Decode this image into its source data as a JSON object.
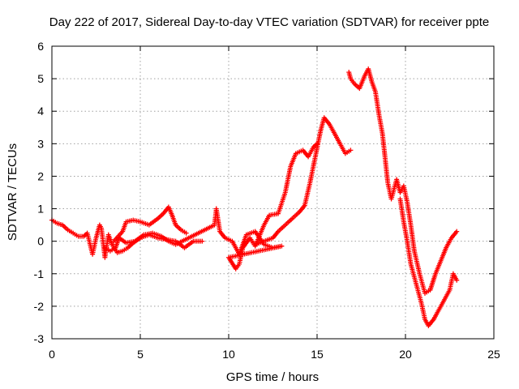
{
  "chart_data": {
    "type": "scatter",
    "title": "Day 222 of 2017, Sidereal Day-to-day VTEC variation (SDTVAR) for receiver ppte",
    "xlabel": "GPS time / hours",
    "ylabel": "SDTVAR / TECUs",
    "xlim": [
      0,
      25
    ],
    "ylim": [
      -3,
      6
    ],
    "xticks": [
      "0",
      "5",
      "10",
      "15",
      "20",
      "25"
    ],
    "yticks": [
      "-3",
      "-2",
      "-1",
      "0",
      "1",
      "2",
      "3",
      "4",
      "5",
      "6"
    ],
    "grid": true,
    "marker": "+",
    "series": [
      {
        "name": "SDTVAR",
        "color": "#ff0000",
        "points": [
          [
            0.0,
            0.65
          ],
          [
            0.3,
            0.55
          ],
          [
            0.6,
            0.5
          ],
          [
            0.9,
            0.35
          ],
          [
            1.2,
            0.25
          ],
          [
            1.5,
            0.15
          ],
          [
            1.8,
            0.15
          ],
          [
            2.0,
            0.25
          ],
          [
            2.3,
            -0.4
          ],
          [
            2.5,
            0.1
          ],
          [
            2.7,
            0.5
          ],
          [
            2.8,
            0.4
          ],
          [
            3.0,
            -0.5
          ],
          [
            3.2,
            0.2
          ],
          [
            3.4,
            -0.1
          ],
          [
            3.7,
            -0.35
          ],
          [
            4.0,
            -0.3
          ],
          [
            4.3,
            -0.2
          ],
          [
            4.6,
            -0.05
          ],
          [
            5.0,
            0.1
          ],
          [
            5.5,
            0.2
          ],
          [
            6.0,
            0.1
          ],
          [
            6.5,
            0.05
          ],
          [
            7.0,
            0.0
          ],
          [
            7.5,
            -0.2
          ],
          [
            8.0,
            0.0
          ],
          [
            8.5,
            0.0
          ],
          [
            3.5,
            0.0
          ],
          [
            4.0,
            0.3
          ],
          [
            4.2,
            0.6
          ],
          [
            4.6,
            0.65
          ],
          [
            5.0,
            0.6
          ],
          [
            5.5,
            0.5
          ],
          [
            6.0,
            0.7
          ],
          [
            6.3,
            0.85
          ],
          [
            6.6,
            1.05
          ],
          [
            6.8,
            0.8
          ],
          [
            7.0,
            0.5
          ],
          [
            7.3,
            0.35
          ],
          [
            7.6,
            0.25
          ],
          [
            3.0,
            -0.2
          ],
          [
            3.3,
            -0.3
          ],
          [
            3.6,
            -0.2
          ],
          [
            3.8,
            0.1
          ],
          [
            4.2,
            -0.05
          ],
          [
            4.7,
            0.0
          ],
          [
            5.2,
            0.2
          ],
          [
            5.7,
            0.25
          ],
          [
            6.2,
            0.15
          ],
          [
            6.6,
            0.0
          ],
          [
            7.0,
            -0.1
          ],
          [
            9.2,
            0.5
          ],
          [
            9.3,
            1.0
          ],
          [
            9.5,
            0.3
          ],
          [
            9.8,
            0.1
          ],
          [
            10.2,
            0.0
          ],
          [
            10.6,
            -0.4
          ],
          [
            11.0,
            0.2
          ],
          [
            11.5,
            0.3
          ],
          [
            12.0,
            -0.1
          ],
          [
            12.5,
            -0.2
          ],
          [
            13.0,
            -0.15
          ],
          [
            10.0,
            -0.5
          ],
          [
            10.4,
            -0.85
          ],
          [
            10.6,
            -0.7
          ],
          [
            10.8,
            -0.2
          ],
          [
            11.2,
            0.1
          ],
          [
            11.5,
            -0.15
          ],
          [
            12.0,
            0.5
          ],
          [
            12.3,
            0.8
          ],
          [
            12.8,
            0.85
          ],
          [
            13.2,
            1.5
          ],
          [
            13.5,
            2.3
          ],
          [
            13.8,
            2.7
          ],
          [
            14.2,
            2.8
          ],
          [
            14.5,
            2.6
          ],
          [
            14.8,
            2.9
          ],
          [
            15.0,
            3.0
          ],
          [
            11.5,
            -0.1
          ],
          [
            12.0,
            0.0
          ],
          [
            12.5,
            0.1
          ],
          [
            12.8,
            0.3
          ],
          [
            13.2,
            0.5
          ],
          [
            13.6,
            0.7
          ],
          [
            14.0,
            0.9
          ],
          [
            14.3,
            1.1
          ],
          [
            14.6,
            1.8
          ],
          [
            14.9,
            2.6
          ],
          [
            15.2,
            3.4
          ],
          [
            15.4,
            3.8
          ],
          [
            15.7,
            3.6
          ],
          [
            16.0,
            3.3
          ],
          [
            16.3,
            3.0
          ],
          [
            16.6,
            2.7
          ],
          [
            16.9,
            2.8
          ],
          [
            16.8,
            5.2
          ],
          [
            16.9,
            5.0
          ],
          [
            17.1,
            4.85
          ],
          [
            17.4,
            4.7
          ],
          [
            17.7,
            5.1
          ],
          [
            17.9,
            5.3
          ],
          [
            18.1,
            4.9
          ],
          [
            18.3,
            4.6
          ],
          [
            18.5,
            3.9
          ],
          [
            18.7,
            3.3
          ],
          [
            19.0,
            1.8
          ],
          [
            19.2,
            1.3
          ],
          [
            19.5,
            1.9
          ],
          [
            19.7,
            1.5
          ],
          [
            19.9,
            1.7
          ],
          [
            20.1,
            1.2
          ],
          [
            20.3,
            0.5
          ],
          [
            20.5,
            -0.3
          ],
          [
            20.8,
            -1.0
          ],
          [
            21.1,
            -1.6
          ],
          [
            21.4,
            -1.5
          ],
          [
            21.7,
            -1.0
          ],
          [
            22.0,
            -0.6
          ],
          [
            22.3,
            -0.2
          ],
          [
            22.6,
            0.1
          ],
          [
            22.9,
            0.3
          ],
          [
            19.7,
            1.3
          ],
          [
            19.9,
            0.6
          ],
          [
            20.1,
            0.0
          ],
          [
            20.3,
            -0.7
          ],
          [
            20.6,
            -1.3
          ],
          [
            20.9,
            -1.9
          ],
          [
            21.1,
            -2.4
          ],
          [
            21.3,
            -2.6
          ],
          [
            21.6,
            -2.4
          ],
          [
            21.9,
            -2.1
          ],
          [
            22.2,
            -1.8
          ],
          [
            22.5,
            -1.5
          ],
          [
            22.7,
            -1.0
          ],
          [
            22.9,
            -1.2
          ]
        ]
      }
    ]
  }
}
